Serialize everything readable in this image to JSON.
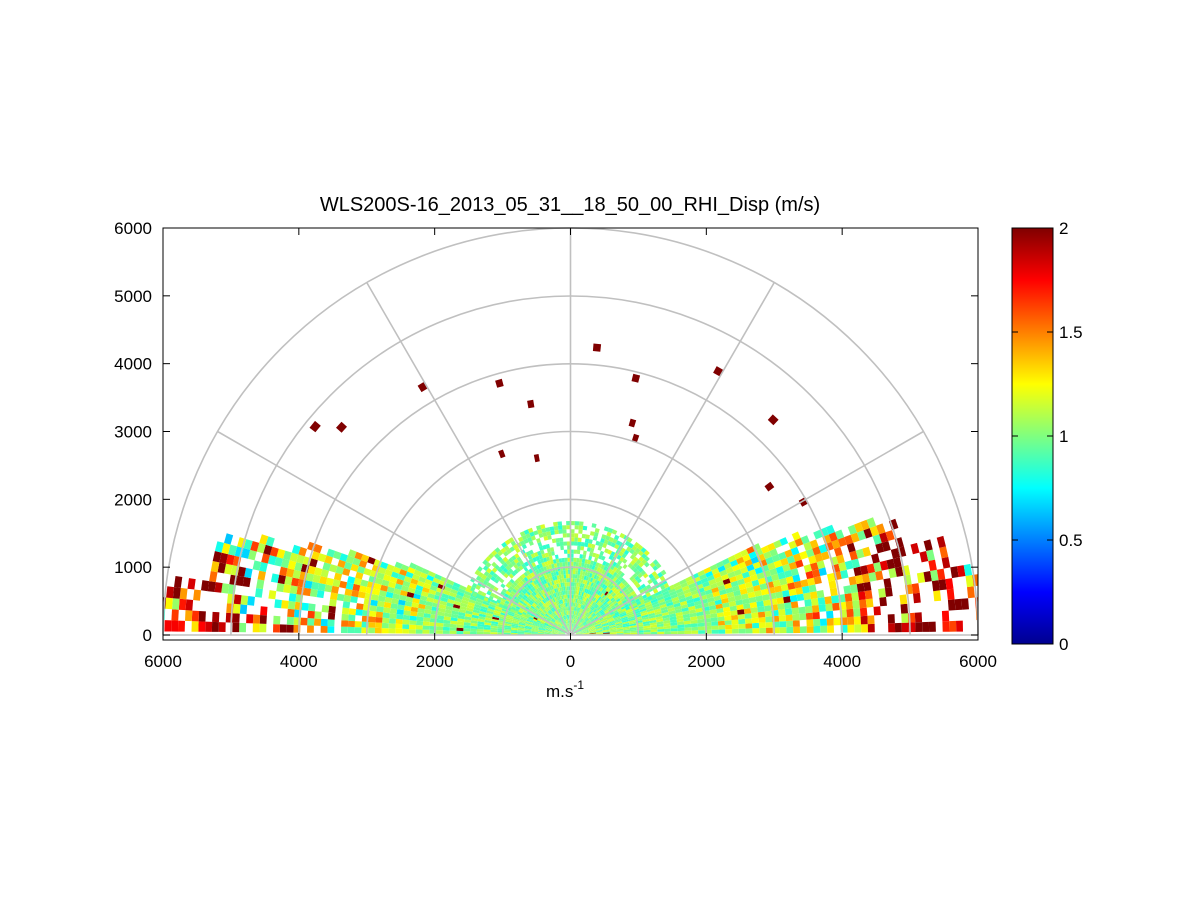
{
  "chart_data": {
    "type": "heatmap",
    "title": "WLS200S-16_2013_05_31__18_50_00_RHI_Disp (m/s)",
    "xlabel_base": "m.s",
    "xlabel_exp": "-1",
    "x_tick_labels": [
      "6000",
      "4000",
      "2000",
      "0",
      "2000",
      "4000",
      "6000"
    ],
    "x_tick_values": [
      -6000,
      -4000,
      -2000,
      0,
      2000,
      4000,
      6000
    ],
    "y_tick_labels": [
      "6000",
      "5000",
      "4000",
      "3000",
      "2000",
      "1000",
      "0"
    ],
    "y_tick_values": [
      6000,
      5000,
      4000,
      3000,
      2000,
      1000,
      0
    ],
    "xlim": [
      -6000,
      6000
    ],
    "ylim": [
      0,
      6000
    ],
    "polar_range_rings": [
      1000,
      2000,
      3000,
      4000,
      5000,
      6000
    ],
    "polar_spokes_deg": [
      0,
      30,
      60,
      90,
      120,
      150,
      180
    ],
    "colorbar": {
      "min": 0,
      "max": 2,
      "tick_labels": [
        "2",
        "1.5",
        "1",
        "0.5",
        "0"
      ],
      "tick_values": [
        2,
        1.5,
        1,
        0.5,
        0
      ],
      "colormap": "jet"
    },
    "scan_sectors": [
      {
        "side": "left",
        "elevation_deg": [
          0,
          25
        ],
        "max_range_m": 6000,
        "typical_value": 1.0
      },
      {
        "side": "right",
        "elevation_deg": [
          0,
          27
        ],
        "max_range_m": 6000,
        "typical_value": 1.0
      },
      {
        "side": "center",
        "elevation_deg": [
          25,
          155
        ],
        "max_range_m": 1700,
        "typical_value": 1.0
      }
    ],
    "high_value_regions": [
      {
        "description": "far range, low elevation, right side",
        "value_range": [
          1.5,
          2.0
        ]
      },
      {
        "description": "left side near 5000-6000 m range",
        "value_range": [
          1.5,
          2.0
        ]
      },
      {
        "description": "scattered isolated cells at upper elevations",
        "value": 2.0
      }
    ]
  }
}
